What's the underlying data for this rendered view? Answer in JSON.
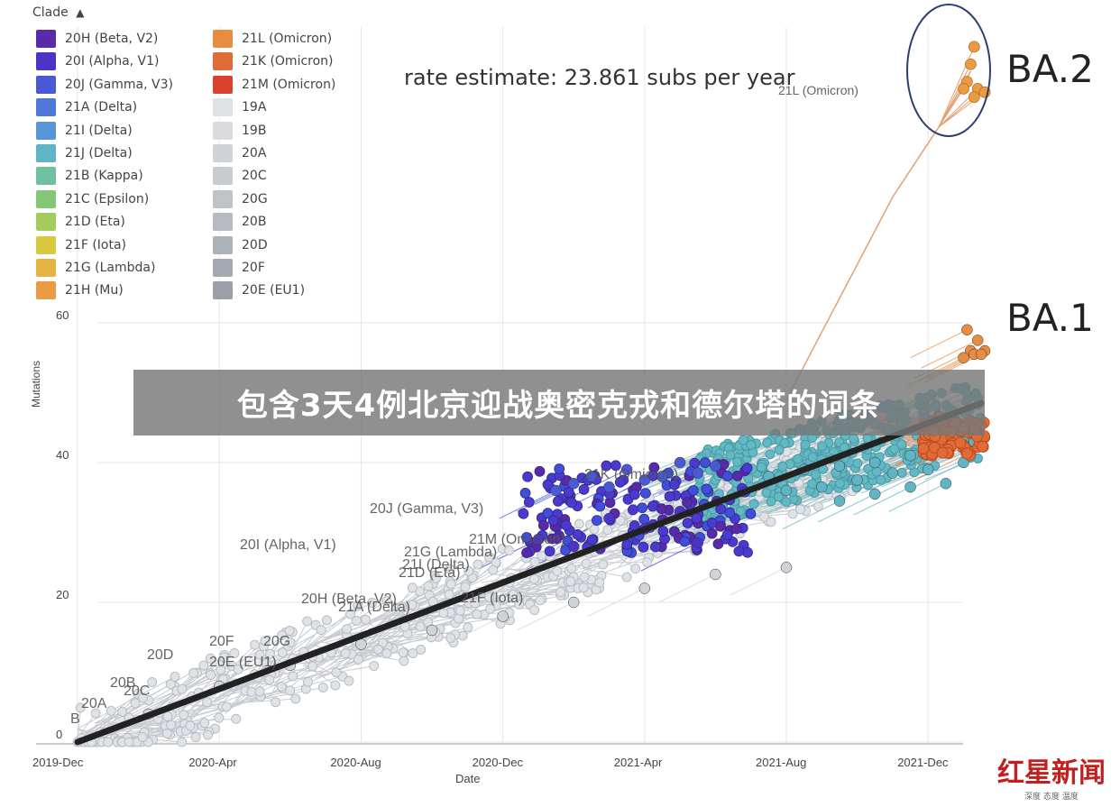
{
  "chart_data": {
    "type": "scatter",
    "title": "rate estimate: 23.861 subs per year",
    "xlabel": "Date",
    "ylabel": "Mutations",
    "x_ticks": [
      "2019-Dec",
      "2020-Apr",
      "2020-Aug",
      "2020-Dec",
      "2021-Apr",
      "2021-Aug",
      "2021-Dec"
    ],
    "y_ticks": [
      0,
      20,
      40,
      60
    ],
    "xlim_months": [
      0,
      26
    ],
    "ylim": [
      0,
      62
    ],
    "grid": true,
    "legend_title": "Clade",
    "legend_position": "top-left",
    "legend": [
      {
        "name": "20H (Beta, V2)",
        "color": "#5b2aa8"
      },
      {
        "name": "20I (Alpha, V1)",
        "color": "#4b35c9"
      },
      {
        "name": "20J (Gamma, V3)",
        "color": "#4a5ad6"
      },
      {
        "name": "21A (Delta)",
        "color": "#4f78d8"
      },
      {
        "name": "21I (Delta)",
        "color": "#5695d6"
      },
      {
        "name": "21J (Delta)",
        "color": "#5fb5c6"
      },
      {
        "name": "21B (Kappa)",
        "color": "#6fc0a0"
      },
      {
        "name": "21C (Epsilon)",
        "color": "#86c776"
      },
      {
        "name": "21D (Eta)",
        "color": "#a4cc5a"
      },
      {
        "name": "21F (Iota)",
        "color": "#dac841"
      },
      {
        "name": "21G (Lambda)",
        "color": "#e6b443"
      },
      {
        "name": "21H (Mu)",
        "color": "#ea9c44"
      },
      {
        "name": "21L (Omicron)",
        "color": "#e88c42"
      },
      {
        "name": "21K (Omicron)",
        "color": "#e06a38"
      },
      {
        "name": "21M (Omicron)",
        "color": "#d9432e"
      },
      {
        "name": "19A",
        "color": "#dfe1e4"
      },
      {
        "name": "19B",
        "color": "#d8dadd"
      },
      {
        "name": "20A",
        "color": "#d0d3d7"
      },
      {
        "name": "20C",
        "color": "#c8cbd0"
      },
      {
        "name": "20G",
        "color": "#bfc3c8"
      },
      {
        "name": "20B",
        "color": "#b6bac0"
      },
      {
        "name": "20D",
        "color": "#adb1b8"
      },
      {
        "name": "20F",
        "color": "#a4a8b0"
      },
      {
        "name": "20E (EU1)",
        "color": "#9a9fa8"
      }
    ],
    "regression_line": {
      "start": {
        "x_month": 0,
        "y": 0
      },
      "end": {
        "x_month": 25.5,
        "y": 48.5
      },
      "color": "#222222"
    },
    "series": [
      {
        "name": "21L (Omicron)",
        "x_months": [
          25.1,
          25.4,
          25.2,
          25.6,
          25.3,
          25.5,
          25.0
        ],
        "y": [
          59,
          57.5,
          56,
          56,
          55.5,
          55.5,
          55
        ],
        "color": "#e88c42"
      },
      {
        "name": "21K (Omicron)",
        "x_months": [
          24.3,
          24.6,
          24.9,
          25.2,
          25.5,
          24.5,
          24.8,
          25.1,
          25.4,
          24.4,
          24.7,
          25.0,
          25.3,
          24.6,
          25.2
        ],
        "y": [
          46.5,
          46,
          45.5,
          46,
          45.5,
          44.5,
          44,
          44.5,
          44,
          43,
          43.5,
          42.5,
          43,
          42,
          41.5
        ],
        "color": "#e06a38"
      },
      {
        "name": "21J (Delta)",
        "x_months": [
          19.5,
          20.5,
          21.5,
          22.5,
          23.5,
          24.5,
          25.3,
          20,
          21,
          22,
          23,
          24,
          25,
          21.5,
          22.5,
          23.5,
          24.5
        ],
        "y": [
          38,
          39,
          39.5,
          40,
          41,
          42,
          43,
          36,
          36.5,
          37.5,
          38.5,
          39,
          40,
          34.5,
          35.5,
          36.5,
          37
        ],
        "color": "#5fb5c6"
      },
      {
        "name": "20J (Gamma, V3)",
        "x_months": [
          13.5,
          14,
          14.5,
          15,
          15.5,
          16,
          16.5,
          17,
          17.5,
          18
        ],
        "y": [
          36,
          37,
          38,
          36.5,
          39,
          37.5,
          38,
          40,
          38.5,
          39.5
        ],
        "color": "#4a5ad6"
      },
      {
        "name": "20I (Alpha, V1)",
        "x_months": [
          13,
          14,
          15,
          16,
          17,
          17.5
        ],
        "y": [
          29,
          28,
          32,
          30.5,
          33,
          28.5
        ],
        "color": "#4b35c9"
      },
      {
        "name": "20A",
        "x_months": [
          2,
          4,
          6,
          8,
          10,
          12,
          14,
          16,
          18,
          20
        ],
        "y": [
          4,
          8,
          11,
          14,
          16,
          18,
          20,
          22,
          24,
          25
        ],
        "color": "#d0d3d7"
      }
    ],
    "annotations": [
      {
        "text": "21L (Omicron)"
      },
      {
        "text": "20J (Gamma, V3)"
      },
      {
        "text": "20I (Alpha, V1)"
      },
      {
        "text": "21G (Lambda)"
      },
      {
        "text": "21I (Delta)"
      },
      {
        "text": "21D (Eta)"
      },
      {
        "text": "21M (Omicron)"
      },
      {
        "text": "21F (Iota)"
      },
      {
        "text": "20H (Beta, V2)"
      },
      {
        "text": "21A (Delta)"
      },
      {
        "text": "20D"
      },
      {
        "text": "20F"
      },
      {
        "text": "20G"
      },
      {
        "text": "20E (EU1)"
      },
      {
        "text": "20B"
      },
      {
        "text": "20C"
      },
      {
        "text": "20A"
      },
      {
        "text": "B"
      },
      {
        "text": "21K (Omicron)"
      }
    ]
  },
  "callouts": {
    "ba2": "BA.2",
    "ba1": "BA.1"
  },
  "banner": "包含3天4例北京迎战奥密克戎和德尔塔的词条",
  "logo": {
    "main": "红星新闻",
    "sub": "深度 态度 温度"
  }
}
